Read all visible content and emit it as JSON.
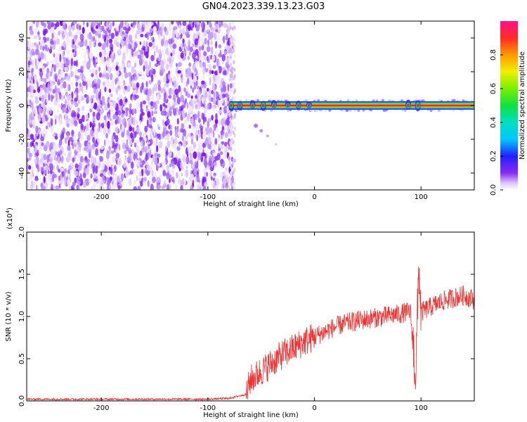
{
  "title": "GN04.2023.339.13.23.G03",
  "colors": {
    "snr_line": "#ee3333",
    "noise_purple": "#7a10f0",
    "spectral_line": "#ff2020"
  },
  "chart_data": [
    {
      "type": "heatmap",
      "xlabel": "Height of straight line (km)",
      "ylabel": "Frequency (Hz)",
      "xlim": [
        -270,
        150
      ],
      "ylim": [
        -50,
        50
      ],
      "x_ticks": [
        -200,
        -100,
        0,
        100
      ],
      "y_ticks": [
        -40,
        -20,
        0,
        20,
        40
      ],
      "colorbar": {
        "label": "Normalized spectral amplitude",
        "range": [
          0,
          1
        ],
        "ticks": [
          "0.0",
          "0.2",
          "0.4",
          "0.6",
          "0.8"
        ],
        "colormap": "rainbow"
      },
      "features": [
        {
          "kind": "noise",
          "x_range": [
            -270,
            -77
          ],
          "y_range": [
            -50,
            50
          ]
        },
        {
          "kind": "line",
          "x_range": [
            -80,
            150
          ],
          "frequency": 0
        },
        {
          "kind": "faint_branch",
          "points": [
            [
              -55,
              -12
            ],
            [
              -50,
              -15
            ],
            [
              -44,
              -18
            ],
            [
              -36,
              -23
            ]
          ]
        }
      ],
      "grid": false
    },
    {
      "type": "line",
      "xlabel": "Height of straight line (km)",
      "ylabel": "SNR (10 * v/v)",
      "y_scale_note": "(x10",
      "y_scale_exponent": "4",
      "y_scale_close": ")",
      "xlim": [
        -270,
        150
      ],
      "ylim": [
        0,
        2.0
      ],
      "x_ticks": [
        -200,
        -100,
        0,
        100
      ],
      "y_ticks": [
        "0.0",
        "0.5",
        "1.0",
        "1.5",
        "2.0"
      ],
      "series": [
        {
          "x": [
            -270,
            -100,
            -80,
            -64,
            -60,
            -50,
            -40,
            -30,
            -20,
            -10,
            0,
            10,
            20,
            30,
            40,
            60,
            80,
            90,
            95,
            98,
            100,
            110,
            120,
            130,
            140,
            150
          ],
          "values": [
            0.02,
            0.02,
            0.03,
            0.08,
            0.25,
            0.35,
            0.45,
            0.55,
            0.62,
            0.7,
            0.76,
            0.82,
            0.88,
            0.92,
            0.95,
            0.99,
            1.03,
            1.06,
            0.3,
            1.6,
            1.05,
            1.12,
            1.18,
            1.22,
            1.25,
            1.2
          ]
        }
      ],
      "grid": false
    }
  ]
}
